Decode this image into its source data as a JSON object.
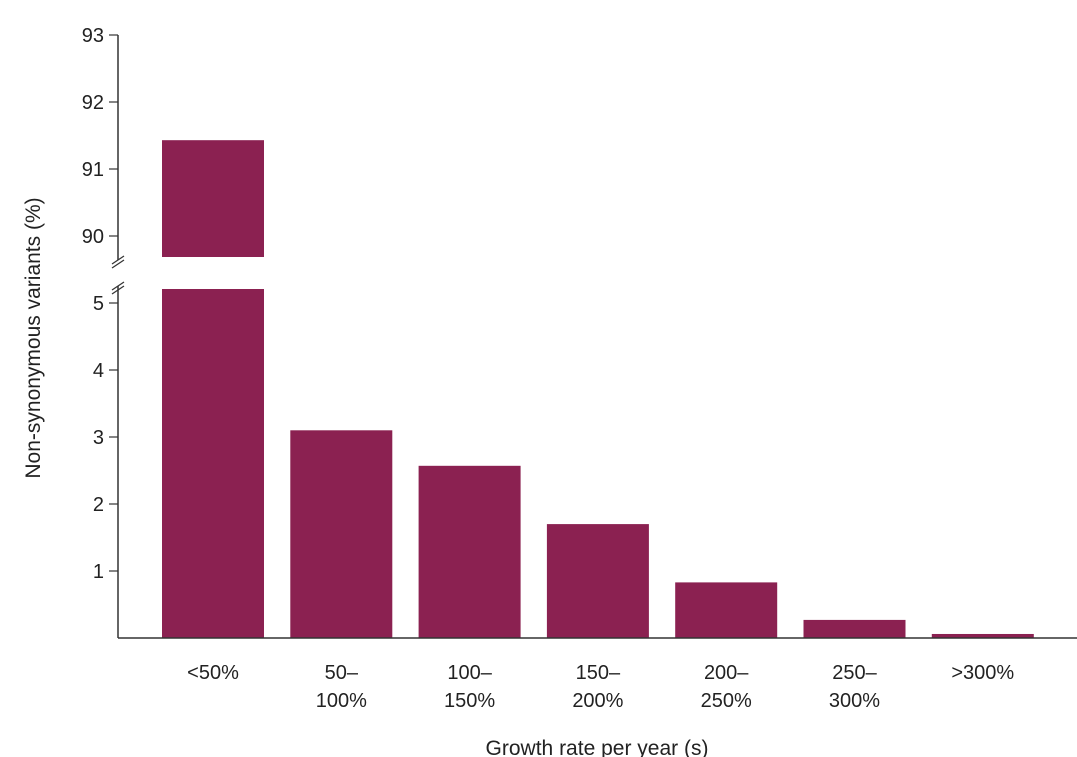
{
  "chart_data": {
    "type": "bar",
    "title": "",
    "xlabel": "Growth rate per year (s)",
    "ylabel": "Non-synonymous variants (%)",
    "categories": [
      [
        "<50%"
      ],
      [
        "50–",
        "100%"
      ],
      [
        "100–",
        "150%"
      ],
      [
        "150–",
        "200%"
      ],
      [
        "200–",
        "250%"
      ],
      [
        "250–",
        "300%"
      ],
      [
        ">300%"
      ]
    ],
    "values": [
      91.43,
      3.1,
      2.57,
      1.7,
      0.83,
      0.27,
      0.06
    ],
    "y_axis_break": {
      "lower_segment": [
        0,
        5.2
      ],
      "upper_segment": [
        89.7,
        93
      ]
    },
    "y_ticks_lower": [
      "1",
      "2",
      "3",
      "4",
      "5"
    ],
    "y_ticks_upper": [
      "90",
      "91",
      "92",
      "93"
    ],
    "bar_color": "#8b2151",
    "axis_color": "#333333",
    "grid": false,
    "legend": "none"
  }
}
